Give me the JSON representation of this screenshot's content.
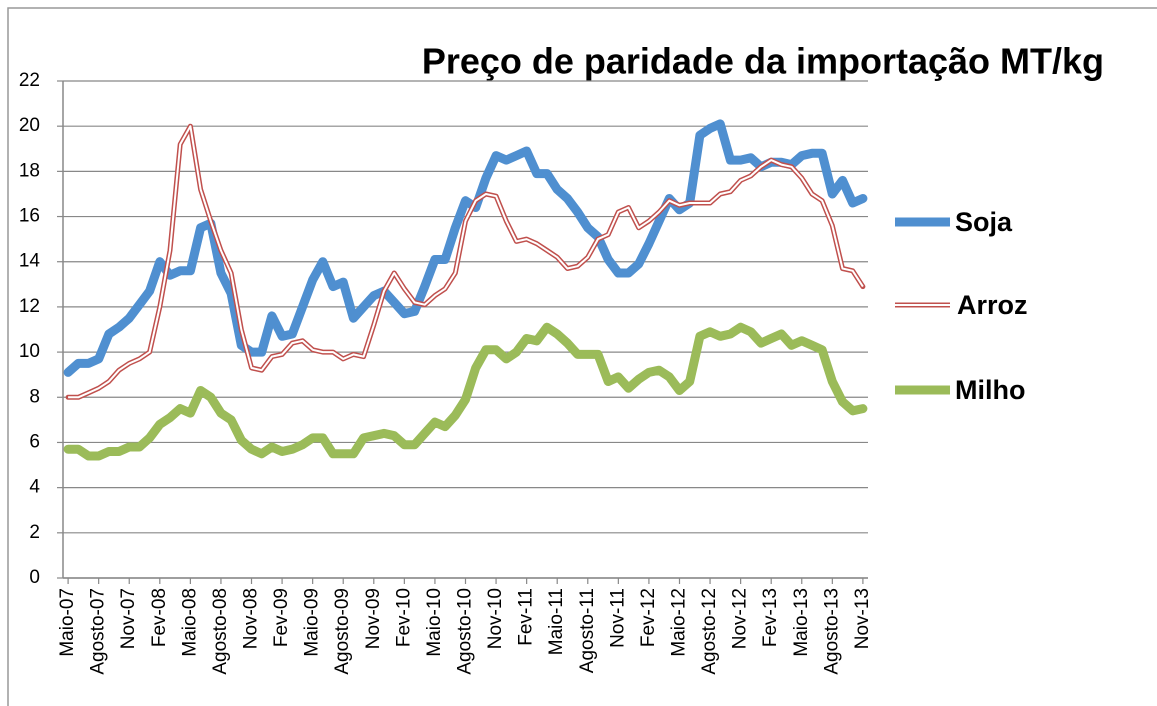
{
  "chart_data": {
    "type": "line",
    "title": "Preço de paridade da importação MT/kg",
    "categories": [
      "Maio-07",
      null,
      null,
      "Agosto-07",
      null,
      null,
      "Nov-07",
      null,
      null,
      "Fev-08",
      null,
      null,
      "Maio-08",
      null,
      null,
      "Agosto-08",
      null,
      null,
      "Nov-08",
      null,
      null,
      "Fev-09",
      null,
      null,
      "Maio-09",
      null,
      null,
      "Agosto-09",
      null,
      null,
      "Nov-09",
      null,
      null,
      "Fev-10",
      null,
      null,
      "Maio-10",
      null,
      null,
      "Agosto-10",
      null,
      null,
      "Nov-10",
      null,
      null,
      "Fev-11",
      null,
      null,
      "Maio-11",
      null,
      null,
      "Agosto-11",
      null,
      null,
      "Nov-11",
      null,
      null,
      "Fev-12",
      null,
      null,
      "Maio-12",
      null,
      null,
      "Agosto-12",
      null,
      null,
      "Nov-12",
      null,
      null,
      "Fev-13",
      null,
      null,
      "Maio-13",
      null,
      null,
      "Agosto-13",
      null,
      null,
      "Nov-13"
    ],
    "series": [
      {
        "name": "Soja",
        "color": "#4f8fd0",
        "values": [
          9.1,
          9.5,
          9.5,
          9.7,
          10.8,
          11.1,
          11.5,
          12.1,
          12.7,
          14.0,
          13.4,
          13.6,
          13.6,
          15.5,
          15.7,
          13.5,
          12.6,
          10.3,
          10.0,
          10.0,
          11.6,
          10.7,
          10.8,
          12.0,
          13.2,
          14.0,
          12.9,
          13.1,
          11.5,
          12.0,
          12.5,
          12.7,
          12.2,
          11.7,
          11.8,
          12.9,
          14.1,
          14.1,
          15.5,
          16.7,
          16.4,
          17.7,
          18.7,
          18.5,
          18.7,
          18.9,
          17.9,
          17.9,
          17.2,
          16.8,
          16.2,
          15.5,
          15.1,
          14.1,
          13.5,
          13.5,
          13.9,
          14.8,
          15.8,
          16.8,
          16.3,
          16.6,
          19.6,
          19.9,
          20.1,
          18.5,
          18.5,
          18.6,
          18.2,
          18.4,
          18.4,
          18.3,
          18.7,
          18.8,
          18.8,
          17.0,
          17.6,
          16.6,
          16.8
        ]
      },
      {
        "name": "Arroz",
        "color": "#c0504d",
        "values": [
          8.0,
          8.0,
          8.2,
          8.4,
          8.7,
          9.2,
          9.5,
          9.7,
          10.0,
          12.0,
          14.5,
          19.2,
          20.0,
          17.2,
          15.8,
          14.5,
          13.5,
          11.0,
          9.3,
          9.2,
          9.8,
          9.9,
          10.4,
          10.5,
          10.1,
          10.0,
          10.0,
          9.7,
          9.9,
          9.8,
          11.2,
          12.7,
          13.5,
          12.8,
          12.2,
          12.1,
          12.5,
          12.8,
          13.5,
          15.8,
          16.7,
          17.0,
          16.9,
          15.8,
          14.9,
          15.0,
          14.8,
          14.5,
          14.2,
          13.7,
          13.8,
          14.2,
          15.0,
          15.2,
          16.2,
          16.4,
          15.5,
          15.8,
          16.2,
          16.7,
          16.5,
          16.6,
          16.6,
          16.6,
          17.0,
          17.1,
          17.6,
          17.8,
          18.2,
          18.5,
          18.3,
          18.2,
          17.7,
          17.0,
          16.7,
          15.6,
          13.7,
          13.6,
          12.9
        ]
      },
      {
        "name": "Milho",
        "color": "#9bbb59",
        "values": [
          5.7,
          5.7,
          5.4,
          5.4,
          5.6,
          5.6,
          5.8,
          5.8,
          6.2,
          6.8,
          7.1,
          7.5,
          7.3,
          8.3,
          8.0,
          7.3,
          7.0,
          6.1,
          5.7,
          5.5,
          5.8,
          5.6,
          5.7,
          5.9,
          6.2,
          6.2,
          5.5,
          5.5,
          5.5,
          6.2,
          6.3,
          6.4,
          6.3,
          5.9,
          5.9,
          6.4,
          6.9,
          6.7,
          7.2,
          7.9,
          9.3,
          10.1,
          10.1,
          9.7,
          10.0,
          10.6,
          10.5,
          11.1,
          10.8,
          10.4,
          9.9,
          9.9,
          9.9,
          8.7,
          8.9,
          8.4,
          8.8,
          9.1,
          9.2,
          8.9,
          8.3,
          8.7,
          10.7,
          10.9,
          10.7,
          10.8,
          11.1,
          10.9,
          10.4,
          10.6,
          10.8,
          10.3,
          10.5,
          10.3,
          10.1,
          8.7,
          7.8,
          7.4,
          7.5
        ]
      }
    ],
    "ylim": [
      0,
      22
    ],
    "yticks": [
      0,
      2,
      4,
      6,
      8,
      10,
      12,
      14,
      16,
      18,
      20,
      22
    ],
    "grid": true,
    "legend": "right"
  }
}
